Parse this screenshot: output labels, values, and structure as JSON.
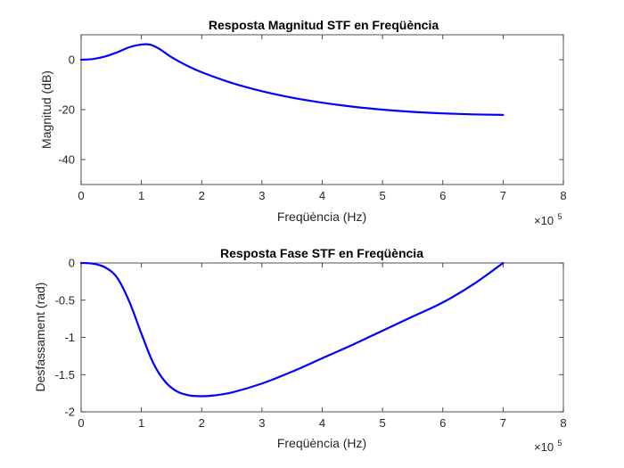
{
  "colors": {
    "line": "#0000ff",
    "axis": "#262626",
    "background": "#ffffff"
  },
  "chart_data": [
    {
      "type": "line",
      "title": "Resposta Magnitud STF en Freqüència",
      "xlabel": "Freqüència (Hz)",
      "ylabel": "Magnitud (dB)",
      "xlim": [
        0,
        800000
      ],
      "ylim": [
        -50,
        10
      ],
      "x_exponent_label": "×10",
      "x_exponent": "5",
      "xticks": [
        0,
        100000,
        200000,
        300000,
        400000,
        500000,
        600000,
        700000,
        800000
      ],
      "xtick_labels": [
        "0",
        "1",
        "2",
        "3",
        "4",
        "5",
        "6",
        "7",
        "8"
      ],
      "yticks": [
        0,
        -20,
        -40
      ],
      "ytick_labels": [
        "0",
        "-20",
        "-40"
      ],
      "grid": false,
      "series": [
        {
          "x": [
            0,
            20000,
            40000,
            60000,
            80000,
            100000,
            115000,
            130000,
            150000,
            175000,
            200000,
            250000,
            300000,
            350000,
            400000,
            450000,
            500000,
            550000,
            600000,
            650000,
            700000
          ],
          "y": [
            0,
            0.3,
            1.3,
            3.0,
            5.0,
            6.1,
            6.0,
            4.3,
            1.0,
            -2.3,
            -5.0,
            -9.3,
            -12.6,
            -15.2,
            -17.2,
            -18.8,
            -20.0,
            -20.9,
            -21.5,
            -21.9,
            -22.1
          ]
        }
      ]
    },
    {
      "type": "line",
      "title": "Resposta Fase STF en Freqüència",
      "xlabel": "Freqüència (Hz)",
      "ylabel": "Desfassament (rad)",
      "xlim": [
        0,
        800000
      ],
      "ylim": [
        -2,
        0
      ],
      "x_exponent_label": "×10",
      "x_exponent": "5",
      "xticks": [
        0,
        100000,
        200000,
        300000,
        400000,
        500000,
        600000,
        700000,
        800000
      ],
      "xtick_labels": [
        "0",
        "1",
        "2",
        "3",
        "4",
        "5",
        "6",
        "7",
        "8"
      ],
      "yticks": [
        0,
        -0.5,
        -1,
        -1.5,
        -2
      ],
      "ytick_labels": [
        "0",
        "-0.5",
        "-1",
        "-1.5",
        "-2"
      ],
      "grid": false,
      "series": [
        {
          "x": [
            0,
            20000,
            40000,
            60000,
            80000,
            100000,
            120000,
            140000,
            160000,
            180000,
            200000,
            220000,
            250000,
            300000,
            350000,
            400000,
            450000,
            500000,
            550000,
            600000,
            650000,
            700000
          ],
          "y": [
            0,
            -0.01,
            -0.06,
            -0.2,
            -0.52,
            -0.95,
            -1.35,
            -1.6,
            -1.73,
            -1.78,
            -1.79,
            -1.78,
            -1.74,
            -1.62,
            -1.46,
            -1.28,
            -1.1,
            -0.91,
            -0.72,
            -0.53,
            -0.29,
            0
          ]
        }
      ]
    }
  ]
}
